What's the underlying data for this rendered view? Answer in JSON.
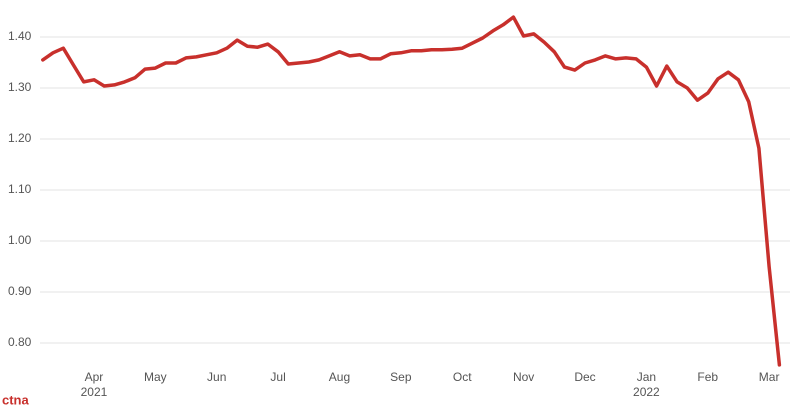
{
  "chart_data": {
    "type": "line",
    "watermark": "ctna",
    "categories": [
      "",
      "",
      "",
      "",
      "",
      "Apr",
      "",
      "",
      "",
      "",
      "",
      "May",
      "",
      "",
      "",
      "",
      "",
      "Jun",
      "",
      "",
      "",
      "",
      "",
      "Jul",
      "",
      "",
      "",
      "",
      "",
      "Aug",
      "",
      "",
      "",
      "",
      "",
      "Sep",
      "",
      "",
      "",
      "",
      "",
      "Oct",
      "",
      "",
      "",
      "",
      "",
      "Nov",
      "",
      "",
      "",
      "",
      "",
      "Dec",
      "",
      "",
      "",
      "",
      "",
      "Jan",
      "",
      "",
      "",
      "",
      "",
      "Feb",
      "",
      "",
      "",
      "",
      "",
      "Mar",
      ""
    ],
    "category_sublabels": [
      null,
      null,
      null,
      null,
      null,
      "2021",
      null,
      null,
      null,
      null,
      null,
      null,
      null,
      null,
      null,
      null,
      null,
      null,
      null,
      null,
      null,
      null,
      null,
      null,
      null,
      null,
      null,
      null,
      null,
      null,
      null,
      null,
      null,
      null,
      null,
      null,
      null,
      null,
      null,
      null,
      null,
      null,
      null,
      null,
      null,
      null,
      null,
      null,
      null,
      null,
      null,
      null,
      null,
      null,
      null,
      null,
      null,
      null,
      null,
      "2022",
      null,
      null,
      null,
      null,
      null,
      null,
      null,
      null,
      null,
      null,
      null,
      null,
      null
    ],
    "series": [
      {
        "color": "#c8302c",
        "values": [
          1.355,
          1.369,
          1.378,
          1.345,
          1.312,
          1.316,
          1.304,
          1.306,
          1.312,
          1.32,
          1.337,
          1.339,
          1.349,
          1.349,
          1.359,
          1.361,
          1.365,
          1.369,
          1.378,
          1.394,
          1.382,
          1.38,
          1.386,
          1.371,
          1.347,
          1.349,
          1.351,
          1.355,
          1.363,
          1.371,
          1.363,
          1.365,
          1.357,
          1.357,
          1.367,
          1.369,
          1.373,
          1.373,
          1.375,
          1.375,
          1.376,
          1.378,
          1.388,
          1.398,
          1.412,
          1.424,
          1.439,
          1.402,
          1.406,
          1.39,
          1.371,
          1.341,
          1.335,
          1.349,
          1.355,
          1.363,
          1.357,
          1.359,
          1.357,
          1.341,
          1.304,
          1.343,
          1.312,
          1.3,
          1.276,
          1.29,
          1.318,
          1.331,
          1.316,
          1.273,
          1.182,
          0.95,
          0.757
        ]
      }
    ],
    "ylim": [
      0.75,
      1.45
    ],
    "yticks": [
      {
        "value": 0.8,
        "label": "0.80"
      },
      {
        "value": 0.9,
        "label": "0.90"
      },
      {
        "value": 1.0,
        "label": "1.00"
      },
      {
        "value": 1.1,
        "label": "1.10"
      },
      {
        "value": 1.2,
        "label": "1.20"
      },
      {
        "value": 1.3,
        "label": "1.30"
      },
      {
        "value": 1.4,
        "label": "1.40"
      }
    ],
    "grid": true
  }
}
